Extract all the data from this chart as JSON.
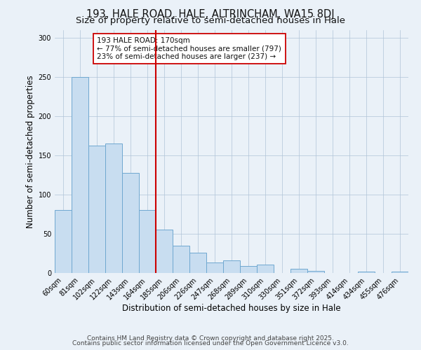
{
  "title": "193, HALE ROAD, HALE, ALTRINCHAM, WA15 8DJ",
  "subtitle": "Size of property relative to semi-detached houses in Hale",
  "xlabel": "Distribution of semi-detached houses by size in Hale",
  "ylabel": "Number of semi-detached properties",
  "bar_labels": [
    "60sqm",
    "81sqm",
    "102sqm",
    "122sqm",
    "143sqm",
    "164sqm",
    "185sqm",
    "206sqm",
    "226sqm",
    "247sqm",
    "268sqm",
    "289sqm",
    "310sqm",
    "330sqm",
    "351sqm",
    "372sqm",
    "393sqm",
    "414sqm",
    "434sqm",
    "455sqm",
    "476sqm"
  ],
  "bar_values": [
    80,
    250,
    162,
    165,
    128,
    80,
    55,
    35,
    26,
    13,
    16,
    9,
    11,
    0,
    5,
    3,
    0,
    0,
    2,
    0,
    2
  ],
  "bar_color": "#c8ddf0",
  "bar_edge_color": "#6fa8d0",
  "bg_color": "#eaf1f8",
  "plot_bg_color": "#eaf1f8",
  "vline_color": "#cc0000",
  "vline_x_index": 5.5,
  "annotation_title": "193 HALE ROAD: 170sqm",
  "annotation_line1": "← 77% of semi-detached houses are smaller (797)",
  "annotation_line2": "23% of semi-detached houses are larger (237) →",
  "ylim": [
    0,
    310
  ],
  "yticks": [
    0,
    50,
    100,
    150,
    200,
    250,
    300
  ],
  "footer1": "Contains HM Land Registry data © Crown copyright and database right 2025.",
  "footer2": "Contains public sector information licensed under the Open Government Licence v3.0.",
  "title_fontsize": 10.5,
  "subtitle_fontsize": 9.5,
  "axis_label_fontsize": 8.5,
  "tick_fontsize": 7,
  "annotation_fontsize": 7.5,
  "footer_fontsize": 6.5,
  "grid_color": "#b0c4d8",
  "grid_lw": 0.5
}
